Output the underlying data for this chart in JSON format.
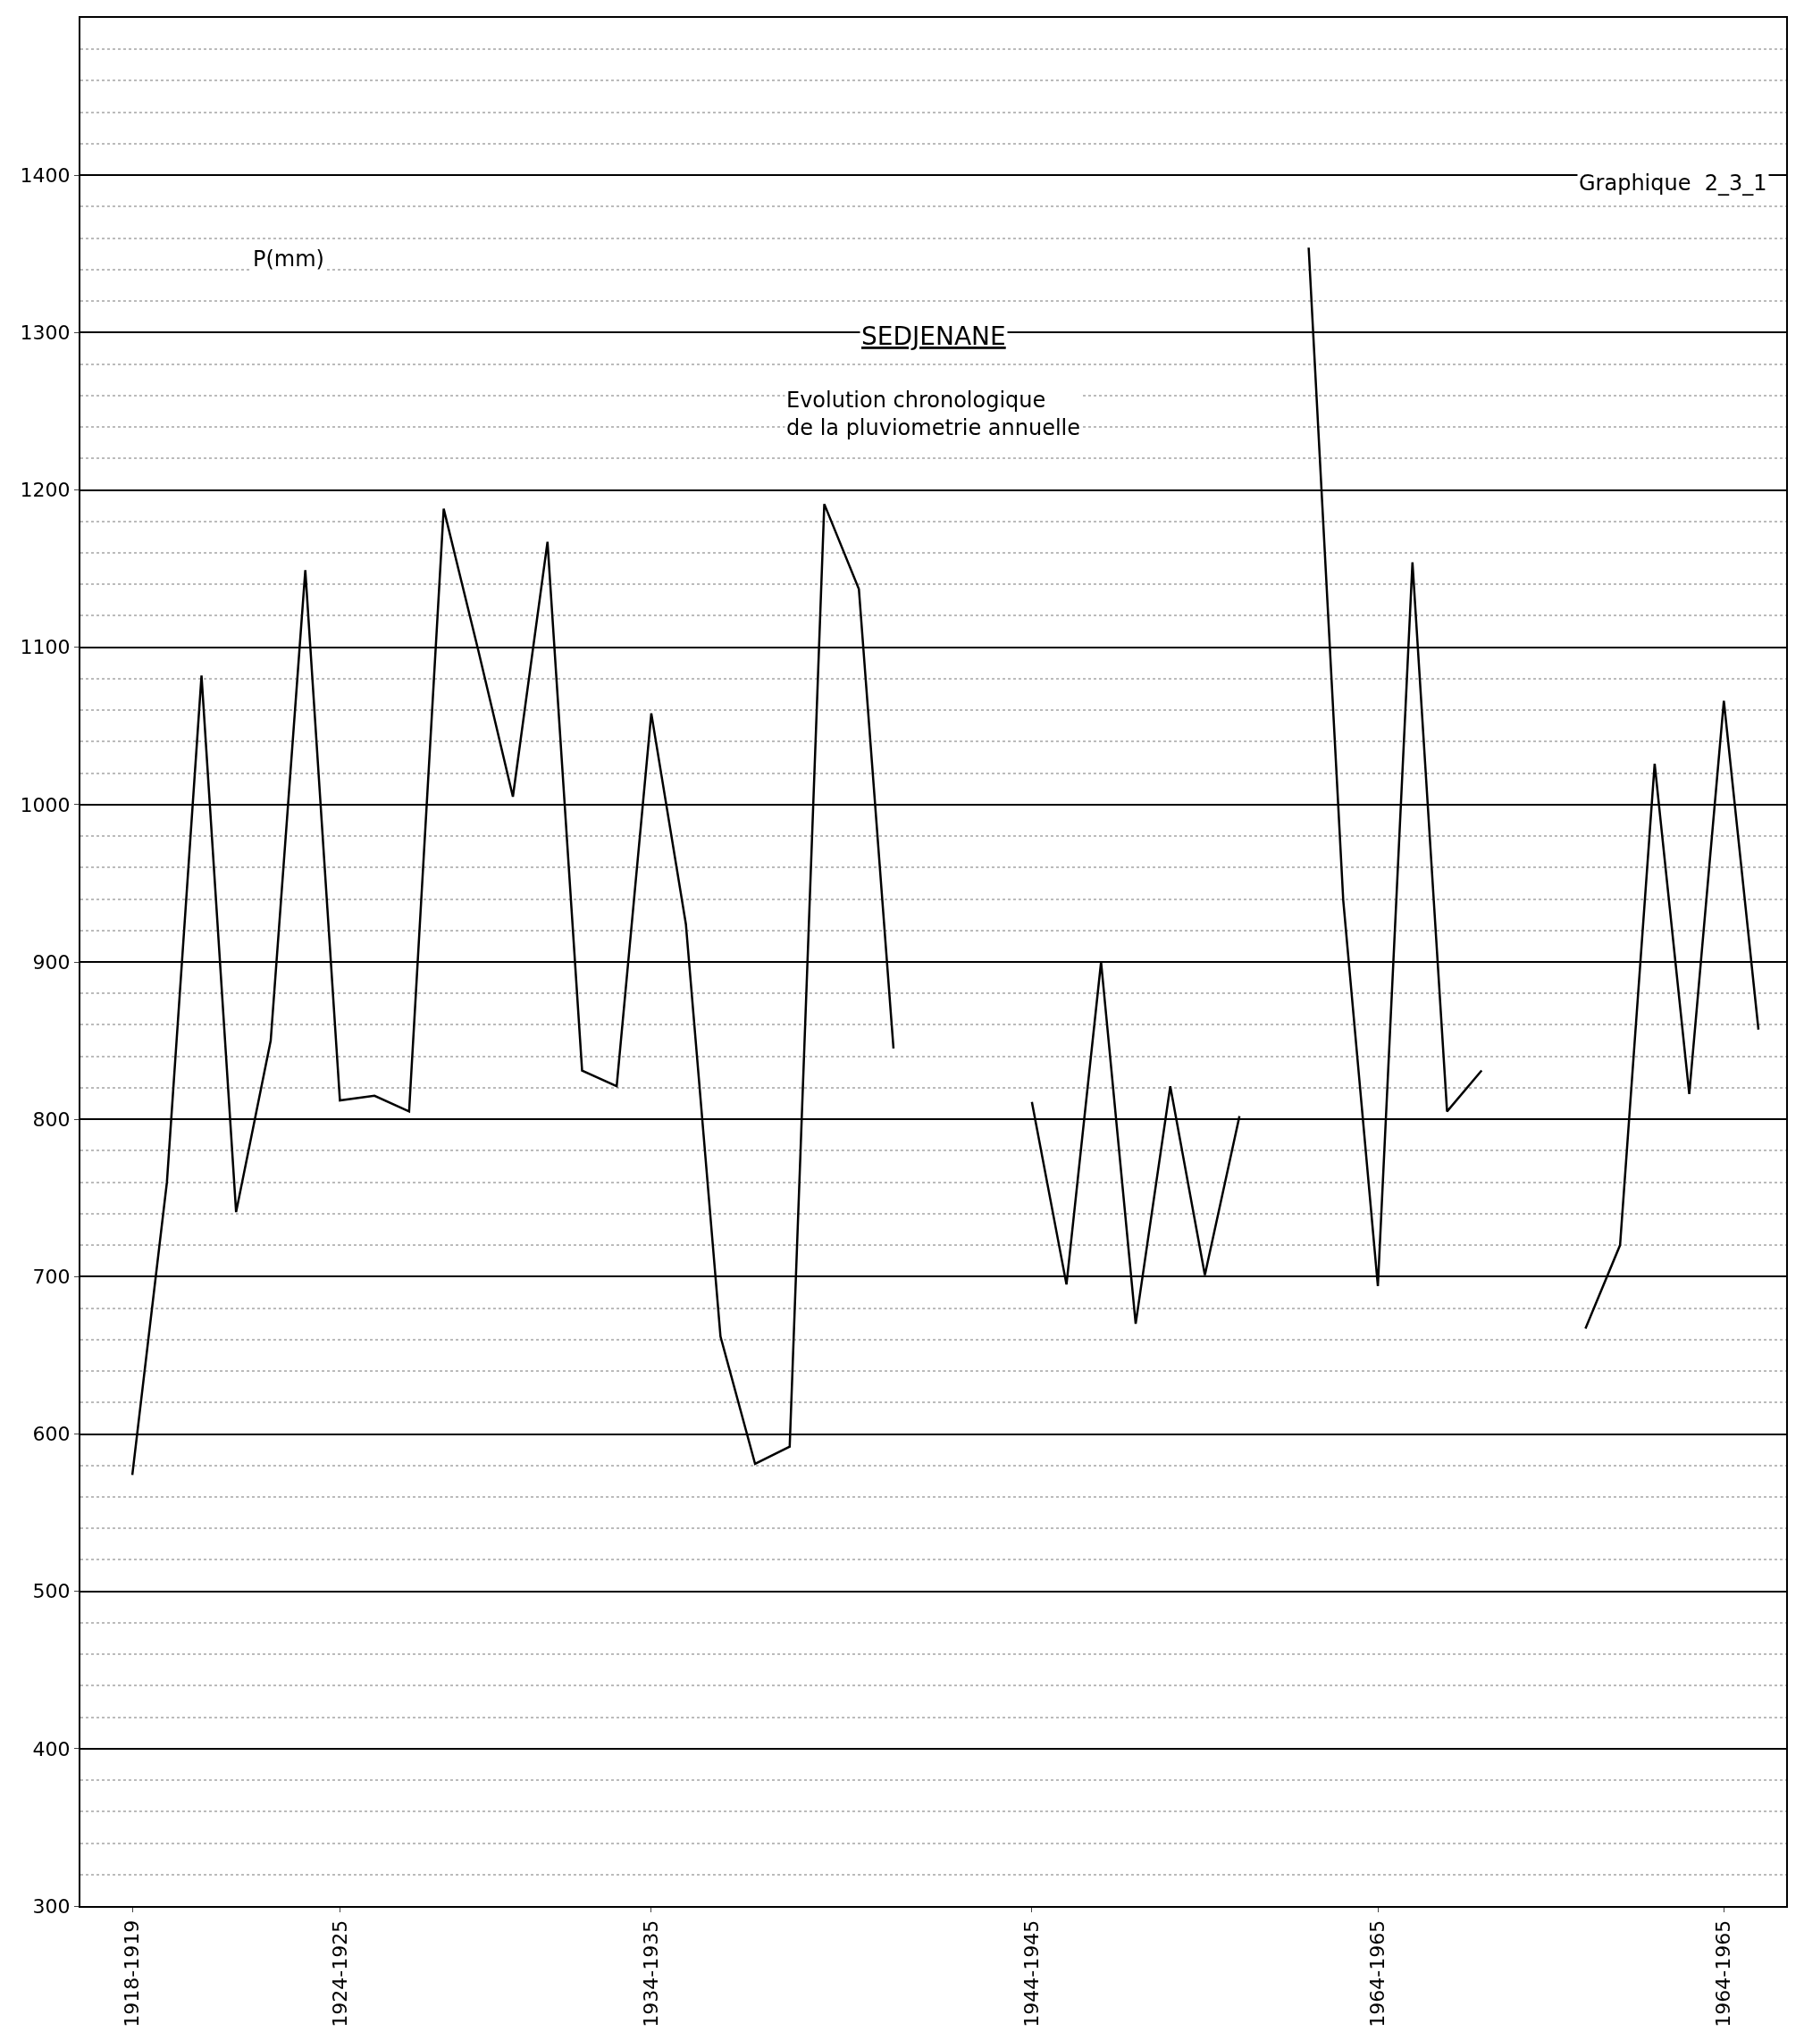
{
  "chart_data": {
    "type": "line",
    "title": "SEDJENANE",
    "subtitle": "Evolution chronologique\nde la pluviometrie annuelle",
    "ylabel": "P(mm)",
    "annotations": [
      "Graphique  2_3_1"
    ],
    "categories": [
      "1918-1919",
      null,
      null,
      null,
      null,
      null,
      "1924-1925",
      null,
      null,
      null,
      null,
      null,
      null,
      null,
      null,
      "1934-1935",
      null,
      null,
      null,
      null,
      null,
      null,
      null,
      null,
      null,
      null,
      "1944-1945",
      null,
      null,
      null,
      null,
      null,
      null,
      null,
      null,
      null,
      "1964-1965",
      null,
      null,
      null,
      null,
      null,
      null,
      null,
      null,
      null,
      "1964-1965",
      null
    ],
    "series": [
      {
        "color": "#000000",
        "values": [
          574,
          760,
          1082,
          741,
          850,
          1149,
          812,
          815,
          805,
          1188,
          1098,
          1005,
          1167,
          831,
          821,
          1058,
          924,
          662,
          581,
          592,
          1191,
          1137,
          845,
          null,
          null,
          null,
          811,
          695,
          900,
          670,
          821,
          701,
          802,
          null,
          1354,
          939,
          694,
          1154,
          805,
          831,
          null,
          null,
          667,
          720,
          1026,
          816,
          1066,
          857
        ]
      }
    ],
    "ylim": [
      300,
      1500
    ],
    "yticks": [
      300,
      400,
      500,
      600,
      700,
      800,
      900,
      1000,
      1100,
      1200,
      1300,
      1400
    ],
    "grid": "y",
    "line_style": "solid"
  }
}
